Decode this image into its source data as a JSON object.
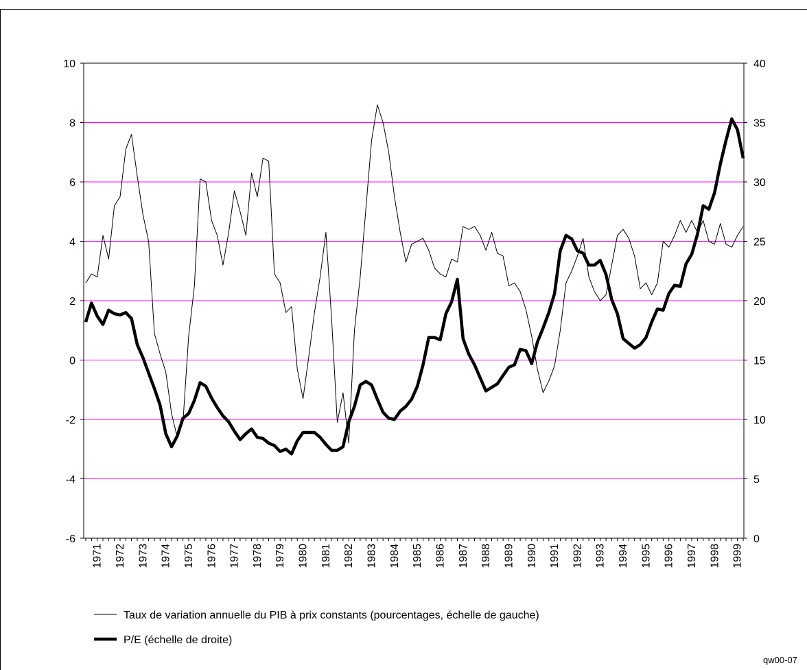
{
  "chart_data": {
    "type": "line",
    "categories": [
      null,
      null,
      "1971",
      null,
      null,
      null,
      "1972",
      null,
      null,
      null,
      "1973",
      null,
      null,
      null,
      "1974",
      null,
      null,
      null,
      "1975",
      null,
      null,
      null,
      "1976",
      null,
      null,
      null,
      "1977",
      null,
      null,
      null,
      "1978",
      null,
      null,
      null,
      "1979",
      null,
      null,
      null,
      "1980",
      null,
      null,
      null,
      "1981",
      null,
      null,
      null,
      "1982",
      null,
      null,
      null,
      "1983",
      null,
      null,
      null,
      "1984",
      null,
      null,
      null,
      "1985",
      null,
      null,
      null,
      "1986",
      null,
      null,
      null,
      "1987",
      null,
      null,
      null,
      "1988",
      null,
      null,
      null,
      "1989",
      null,
      null,
      null,
      "1990",
      null,
      null,
      null,
      "1991",
      null,
      null,
      null,
      "1992",
      null,
      null,
      null,
      "1993",
      null,
      null,
      null,
      "1994",
      null,
      null,
      null,
      "1995",
      null,
      null,
      null,
      "1996",
      null,
      null,
      null,
      "1997",
      null,
      null,
      null,
      "1998",
      null,
      null,
      null,
      "1999",
      null
    ],
    "series": [
      {
        "name": "Taux de variation annuelle du PIB à prix constants (pourcentages, échelle de gauche)",
        "color": "#000000",
        "values": [
          2.6,
          2.9,
          2.8,
          4.2,
          3.4,
          5.2,
          5.5,
          7.1,
          7.6,
          6.2,
          4.9,
          4.0,
          0.9,
          0.2,
          -0.4,
          -1.8,
          -2.6,
          -2.1,
          0.8,
          2.5,
          6.1,
          6.0,
          4.7,
          4.2,
          3.2,
          4.3,
          5.7,
          5.0,
          4.2,
          6.3,
          5.5,
          6.8,
          6.7,
          2.9,
          2.6,
          1.6,
          1.8,
          -0.3,
          -1.3,
          0.1,
          1.6,
          2.8,
          4.3,
          1.4,
          -2.1,
          -1.1,
          -2.8,
          1.0,
          2.8,
          5.1,
          7.4,
          8.6,
          8.0,
          7.0,
          5.5,
          4.3,
          3.3,
          3.9,
          4.0,
          4.1,
          3.7,
          3.1,
          2.9,
          2.8,
          3.4,
          3.3,
          4.5,
          4.4,
          4.5,
          4.2,
          3.7,
          4.3,
          3.6,
          3.5,
          2.5,
          2.6,
          2.3,
          1.7,
          0.8,
          -0.3,
          -1.1,
          -0.7,
          -0.2,
          1.0,
          2.6,
          3.0,
          3.5,
          4.1,
          2.8,
          2.3,
          2.0,
          2.2,
          3.2,
          4.2,
          4.4,
          4.1,
          3.5,
          2.4,
          2.6,
          2.2,
          2.6,
          4.0,
          3.8,
          4.2,
          4.7,
          4.3,
          4.7,
          4.3,
          4.7,
          4.0,
          3.9,
          4.6,
          3.9,
          3.8,
          4.2,
          4.5
        ]
      },
      {
        "name": "P/E (échelle de droite)",
        "color": "#000000",
        "axis": "y2",
        "values": [
          18.2,
          19.8,
          18.7,
          18.0,
          19.2,
          18.9,
          18.8,
          19.0,
          18.5,
          16.3,
          15.2,
          13.9,
          12.6,
          11.2,
          8.8,
          7.7,
          8.6,
          10.1,
          10.5,
          11.6,
          13.1,
          12.8,
          11.8,
          11.0,
          10.3,
          9.8,
          9.0,
          8.3,
          8.8,
          9.2,
          8.5,
          8.4,
          8.0,
          7.8,
          7.3,
          7.5,
          7.1,
          8.2,
          8.9,
          8.9,
          8.9,
          8.5,
          7.9,
          7.4,
          7.4,
          7.7,
          9.8,
          11.1,
          12.9,
          13.2,
          12.9,
          11.7,
          10.6,
          10.1,
          10.0,
          10.7,
          11.1,
          11.7,
          12.8,
          14.6,
          16.9,
          16.9,
          16.7,
          18.9,
          19.9,
          21.8,
          16.8,
          15.5,
          14.6,
          13.5,
          12.4,
          12.7,
          13.0,
          13.7,
          14.4,
          14.6,
          15.9,
          15.8,
          14.7,
          16.5,
          17.7,
          19.0,
          20.6,
          24.2,
          25.5,
          25.2,
          24.2,
          24.0,
          23.0,
          23.0,
          23.4,
          22.2,
          20.1,
          18.9,
          16.8,
          16.4,
          16.0,
          16.3,
          16.9,
          18.2,
          19.3,
          19.2,
          20.6,
          21.3,
          21.2,
          23.1,
          23.9,
          25.6,
          28.0,
          27.7,
          29.1,
          31.5,
          33.5,
          35.3,
          34.4,
          32.0
        ]
      }
    ],
    "ylim": [
      -6,
      10
    ],
    "yticks": [
      -6,
      -4,
      -2,
      0,
      2,
      4,
      6,
      8,
      10
    ],
    "y2lim": [
      0,
      40
    ],
    "y2ticks": [
      0,
      5,
      10,
      15,
      20,
      25,
      30,
      35,
      40
    ],
    "grid": true,
    "grid_color": "#ff00ff",
    "legend": "bottom",
    "source_note": "qw00-07"
  }
}
